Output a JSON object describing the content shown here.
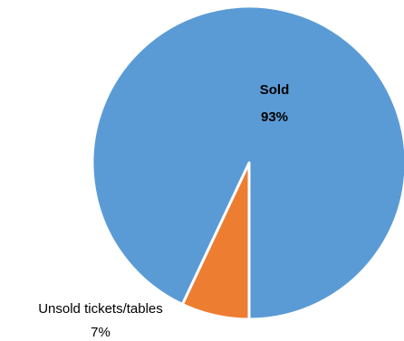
{
  "chart_data": {
    "type": "pie",
    "title": "",
    "slices": [
      {
        "label": "Sold",
        "value": 93,
        "display": "93%",
        "color": "#5b9bd5"
      },
      {
        "label": "Unsold tickets/tables",
        "value": 7,
        "display": "7%",
        "color": "#ed7d31"
      }
    ],
    "legend": "none"
  }
}
